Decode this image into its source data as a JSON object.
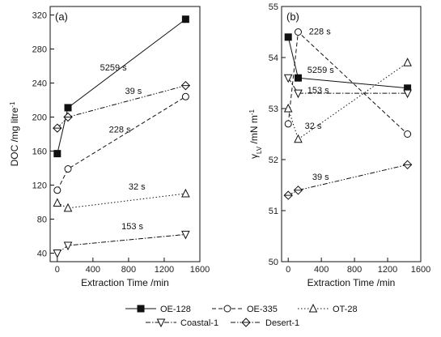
{
  "chart_data": [
    {
      "type": "line",
      "panel_label": "(a)",
      "xlabel": "Extraction Time /min",
      "ylabel_main": "DOC /mg litre",
      "ylabel_sup": "-1",
      "xlim": [
        -80,
        1600
      ],
      "ylim": [
        30,
        330
      ],
      "xticks": [
        0,
        400,
        800,
        1200,
        1600
      ],
      "yticks": [
        40,
        80,
        120,
        160,
        200,
        240,
        280,
        320
      ],
      "series": [
        {
          "name": "OE-128",
          "marker": "square-filled",
          "dash": "solid",
          "x": [
            0,
            120,
            1440
          ],
          "y": [
            157,
            211,
            315
          ]
        },
        {
          "name": "OE-335",
          "marker": "circle-open",
          "dash": "dashed",
          "x": [
            0,
            120,
            1440
          ],
          "y": [
            114,
            139,
            224
          ]
        },
        {
          "name": "OT-28",
          "marker": "triangle-up-open",
          "dash": "dotted",
          "x": [
            0,
            120,
            1440
          ],
          "y": [
            99,
            93,
            110
          ]
        },
        {
          "name": "Coastal-1",
          "marker": "triangle-down-open",
          "dash": "dashdot",
          "x": [
            0,
            120,
            1440
          ],
          "y": [
            40,
            49,
            62
          ]
        },
        {
          "name": "Desert-1",
          "marker": "diamond-open",
          "dash": "dashdotdot",
          "x": [
            0,
            120,
            1440
          ],
          "y": [
            187,
            200,
            237
          ]
        }
      ],
      "annotations": [
        {
          "text": "5259 s",
          "x": 480,
          "y": 255
        },
        {
          "text": "39 s",
          "x": 760,
          "y": 227
        },
        {
          "text": "228 s",
          "x": 580,
          "y": 182
        },
        {
          "text": "32 s",
          "x": 800,
          "y": 115
        },
        {
          "text": "153 s",
          "x": 720,
          "y": 68
        }
      ]
    },
    {
      "type": "line",
      "panel_label": "(b)",
      "xlabel": "Extraction Time /min",
      "ylabel_main": "γ",
      "ylabel_sub": "LV",
      "ylabel_tail": " /mN m",
      "ylabel_sup": "-1",
      "xlim": [
        -80,
        1600
      ],
      "ylim": [
        50,
        55
      ],
      "xticks": [
        0,
        400,
        800,
        1200,
        1600
      ],
      "yticks": [
        50,
        51,
        52,
        53,
        54,
        55
      ],
      "series": [
        {
          "name": "OE-128",
          "marker": "square-filled",
          "dash": "solid",
          "x": [
            0,
            120,
            1440
          ],
          "y": [
            54.4,
            53.6,
            53.4
          ]
        },
        {
          "name": "OE-335",
          "marker": "circle-open",
          "dash": "dashed",
          "x": [
            0,
            120,
            1440
          ],
          "y": [
            52.7,
            54.5,
            52.5
          ]
        },
        {
          "name": "OT-28",
          "marker": "triangle-up-open",
          "dash": "dotted",
          "x": [
            0,
            120,
            1440
          ],
          "y": [
            53.0,
            52.4,
            53.9
          ]
        },
        {
          "name": "Coastal-1",
          "marker": "triangle-down-open",
          "dash": "dashdot",
          "x": [
            0,
            120,
            1440
          ],
          "y": [
            53.6,
            53.3,
            53.3
          ]
        },
        {
          "name": "Desert-1",
          "marker": "diamond-open",
          "dash": "dashdotdot",
          "x": [
            0,
            120,
            1440
          ],
          "y": [
            51.3,
            51.4,
            51.9
          ]
        }
      ],
      "annotations": [
        {
          "text": "228 s",
          "x": 250,
          "y": 54.45
        },
        {
          "text": "5259 s",
          "x": 230,
          "y": 53.7
        },
        {
          "text": "153 s",
          "x": 230,
          "y": 53.3
        },
        {
          "text": "32 s",
          "x": 200,
          "y": 52.6
        },
        {
          "text": "39 s",
          "x": 290,
          "y": 51.6
        }
      ]
    }
  ],
  "legend": {
    "placement": "bottom",
    "entries": [
      "OE-128",
      "OE-335",
      "OT-28",
      "Coastal-1",
      "Desert-1"
    ]
  }
}
